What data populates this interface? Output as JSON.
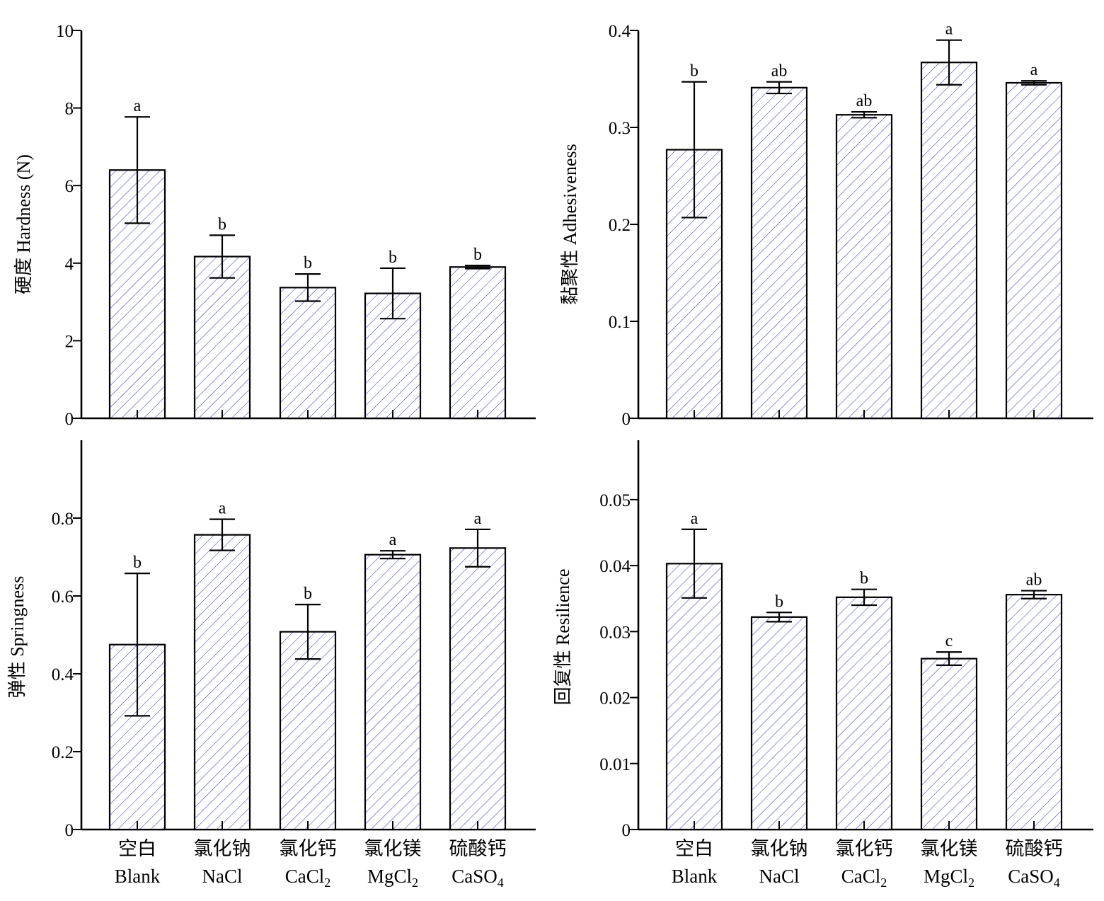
{
  "colors": {
    "hatch": "#3c3ccc",
    "axis": "#000000",
    "bar_fill": "#ffffff"
  },
  "categories": [
    {
      "cn": "空白",
      "en": "Blank",
      "sub": ""
    },
    {
      "cn": "氯化钠",
      "en": "NaCl",
      "sub": ""
    },
    {
      "cn": "氯化钙",
      "en": "CaCl",
      "sub": "2"
    },
    {
      "cn": "氯化镁",
      "en": "MgCl",
      "sub": "2"
    },
    {
      "cn": "硫酸钙",
      "en": "CaSO",
      "sub": "4"
    }
  ],
  "chart_data": [
    {
      "type": "bar",
      "panel": "top-left",
      "ylabel": "硬度 Hardness (N)",
      "ylim": [
        0,
        10
      ],
      "yticks": [
        "0",
        "2",
        "4",
        "6",
        "8",
        "10"
      ],
      "values": [
        6.4,
        4.17,
        3.37,
        3.22,
        3.9
      ],
      "errors": [
        1.37,
        0.55,
        0.35,
        0.65,
        0.04
      ],
      "labels": [
        "a",
        "b",
        "b",
        "b",
        "b"
      ]
    },
    {
      "type": "bar",
      "panel": "top-right",
      "ylabel": "黏聚性 Adhesiveness",
      "ylim": [
        0,
        0.4
      ],
      "yticks": [
        "0",
        "0.1",
        "0.2",
        "0.3",
        "0.4"
      ],
      "values": [
        0.277,
        0.341,
        0.313,
        0.367,
        0.346
      ],
      "errors": [
        0.07,
        0.006,
        0.003,
        0.023,
        0.002
      ],
      "labels": [
        "b",
        "ab",
        "ab",
        "a",
        "a"
      ]
    },
    {
      "type": "bar",
      "panel": "bottom-left",
      "ylabel": "弹性 Springness",
      "ylim": [
        0,
        1.0
      ],
      "yticks": [
        "0",
        "0.2",
        "0.4",
        "0.6",
        "0.8"
      ],
      "values": [
        0.475,
        0.757,
        0.508,
        0.706,
        0.723
      ],
      "errors": [
        0.183,
        0.04,
        0.07,
        0.01,
        0.048
      ],
      "labels": [
        "b",
        "a",
        "b",
        "a",
        "a"
      ]
    },
    {
      "type": "bar",
      "panel": "bottom-right",
      "ylabel": "回复性 Resilience",
      "ylim": [
        0,
        0.059
      ],
      "yticks": [
        "0",
        "0.01",
        "0.02",
        "0.03",
        "0.04",
        "0.05"
      ],
      "values": [
        0.0403,
        0.0322,
        0.0352,
        0.0259,
        0.0356
      ],
      "errors": [
        0.0052,
        0.0007,
        0.0012,
        0.001,
        0.0006
      ],
      "labels": [
        "a",
        "b",
        "b",
        "c",
        "ab"
      ]
    }
  ]
}
